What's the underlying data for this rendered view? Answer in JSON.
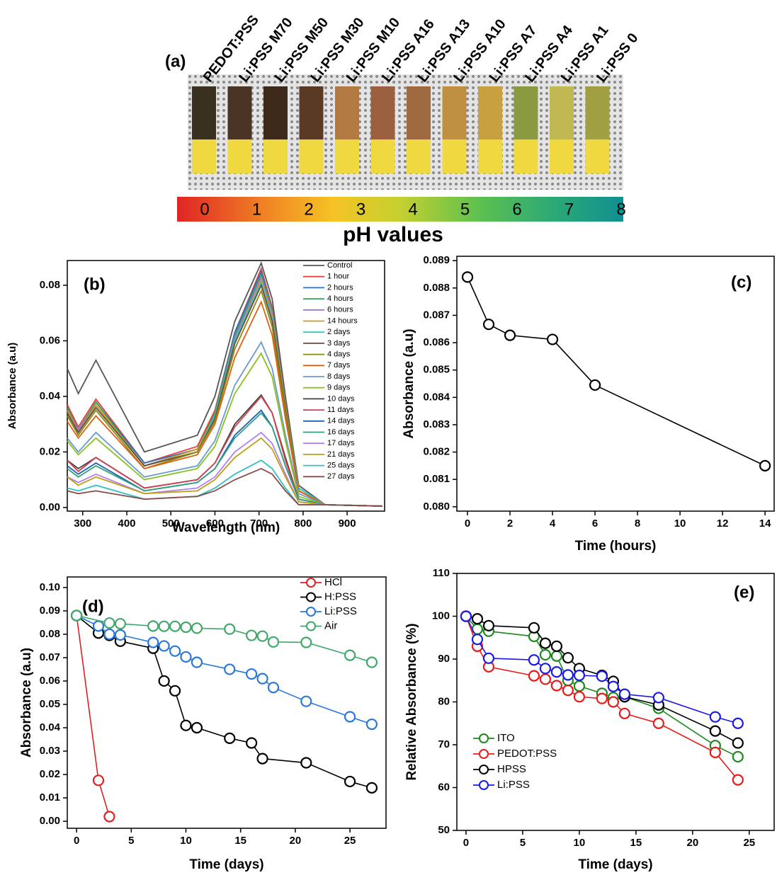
{
  "panel_a": {
    "label": "(a)",
    "strip_labels": [
      "PEDOT:PSS",
      "Li:PSS M70",
      "Li:PSS M50",
      "Li:PSS M30",
      "Li:PSS M10",
      "Li:PSS A16",
      "Li:PSS A13",
      "Li:PSS A10",
      "Li:PSS A7",
      "Li:PSS A4",
      "Li:PSS A1",
      "Li:PSS 0"
    ],
    "ph_scale": [
      0,
      1,
      2,
      3,
      4,
      5,
      6,
      7,
      8
    ],
    "scale_title": "pH values"
  },
  "chart_data": [
    {
      "type": "line",
      "panel_label": "(b)",
      "xlabel": "Wavelength (nm)",
      "ylabel": "Absorbance (a.u)",
      "xlim": [
        265,
        985
      ],
      "ylim": [
        -0.0013,
        0.0889
      ],
      "xticks": [
        300,
        400,
        500,
        600,
        700,
        800,
        900
      ],
      "yticks": [
        {
          "value": 0,
          "label": "0.00"
        },
        0.02,
        0.04,
        0.06,
        0.08
      ],
      "legend": "upper right",
      "marker": "none",
      "x": [
        265,
        290,
        330,
        440,
        560,
        600,
        645,
        705,
        730,
        760,
        790,
        850,
        980
      ],
      "series": [
        {
          "name": "Control",
          "color": "#555555",
          "values": [
            0.05,
            0.041,
            0.053,
            0.02,
            0.026,
            0.04,
            0.067,
            0.088,
            0.075,
            0.04,
            0.008,
            0.001,
            0.0005
          ]
        },
        {
          "name": "1 hour",
          "color": "#e8403a",
          "values": [
            0.037,
            0.029,
            0.039,
            0.016,
            0.022,
            0.035,
            0.063,
            0.086,
            0.072,
            0.038,
            0.007,
            0.001,
            0.0005
          ]
        },
        {
          "name": "2 hours",
          "color": "#2a6fc9",
          "values": [
            0.036,
            0.028,
            0.038,
            0.016,
            0.021,
            0.034,
            0.063,
            0.085,
            0.071,
            0.037,
            0.007,
            0.001,
            0.0005
          ]
        },
        {
          "name": "4 hours",
          "color": "#3aa05a",
          "values": [
            0.036,
            0.028,
            0.038,
            0.015,
            0.021,
            0.034,
            0.062,
            0.084,
            0.071,
            0.037,
            0.007,
            0.001,
            0.0005
          ]
        },
        {
          "name": "6 hours",
          "color": "#a070e0",
          "values": [
            0.035,
            0.028,
            0.037,
            0.015,
            0.021,
            0.033,
            0.061,
            0.083,
            0.07,
            0.036,
            0.007,
            0.001,
            0.0005
          ]
        },
        {
          "name": "14 hours",
          "color": "#d49a20",
          "values": [
            0.035,
            0.027,
            0.037,
            0.015,
            0.021,
            0.033,
            0.06,
            0.082,
            0.069,
            0.036,
            0.007,
            0.001,
            0.0005
          ]
        },
        {
          "name": "2 days",
          "color": "#30c8c8",
          "values": [
            0.034,
            0.027,
            0.036,
            0.015,
            0.02,
            0.033,
            0.06,
            0.081,
            0.068,
            0.035,
            0.007,
            0.001,
            0.0005
          ]
        },
        {
          "name": "3 days",
          "color": "#6b4a3a",
          "values": [
            0.034,
            0.027,
            0.036,
            0.015,
            0.02,
            0.032,
            0.059,
            0.08,
            0.067,
            0.035,
            0.006,
            0.001,
            0.0005
          ]
        },
        {
          "name": "4 days",
          "color": "#8a8a10",
          "values": [
            0.033,
            0.026,
            0.035,
            0.014,
            0.02,
            0.031,
            0.057,
            0.078,
            0.065,
            0.034,
            0.006,
            0.001,
            0.0005
          ]
        },
        {
          "name": "7 days",
          "color": "#e06010",
          "values": [
            0.031,
            0.025,
            0.033,
            0.014,
            0.019,
            0.03,
            0.054,
            0.074,
            0.062,
            0.032,
            0.006,
            0.001,
            0.0005
          ]
        },
        {
          "name": "8 days",
          "color": "#6a9ad0",
          "values": [
            0.025,
            0.02,
            0.027,
            0.011,
            0.015,
            0.024,
            0.044,
            0.0595,
            0.05,
            0.026,
            0.005,
            0.001,
            0.0005
          ]
        },
        {
          "name": "9 days",
          "color": "#8ac020",
          "values": [
            0.024,
            0.019,
            0.025,
            0.01,
            0.014,
            0.022,
            0.041,
            0.0555,
            0.047,
            0.024,
            0.004,
            0.001,
            0.0005
          ]
        },
        {
          "name": "10 days",
          "color": "#404040",
          "values": [
            0.017,
            0.014,
            0.018,
            0.007,
            0.01,
            0.016,
            0.03,
            0.0405,
            0.034,
            0.018,
            0.003,
            0.001,
            0.0005
          ]
        },
        {
          "name": "11 days",
          "color": "#d04050",
          "values": [
            0.017,
            0.013,
            0.018,
            0.007,
            0.01,
            0.016,
            0.029,
            0.04,
            0.034,
            0.017,
            0.003,
            0.001,
            0.0005
          ]
        },
        {
          "name": "14 days",
          "color": "#2060b0",
          "values": [
            0.015,
            0.012,
            0.016,
            0.006,
            0.009,
            0.014,
            0.026,
            0.035,
            0.029,
            0.015,
            0.003,
            0.001,
            0.0005
          ]
        },
        {
          "name": "16 days",
          "color": "#30a080",
          "values": [
            0.014,
            0.011,
            0.015,
            0.006,
            0.009,
            0.014,
            0.025,
            0.034,
            0.029,
            0.015,
            0.003,
            0.001,
            0.0005
          ]
        },
        {
          "name": "17 days",
          "color": "#b080f0",
          "values": [
            0.011,
            0.009,
            0.012,
            0.005,
            0.007,
            0.011,
            0.02,
            0.027,
            0.023,
            0.012,
            0.002,
            0.001,
            0.0005
          ]
        },
        {
          "name": "21 days",
          "color": "#c0a010",
          "values": [
            0.011,
            0.008,
            0.011,
            0.005,
            0.006,
            0.01,
            0.018,
            0.025,
            0.021,
            0.011,
            0.002,
            0.001,
            0.0005
          ]
        },
        {
          "name": "25 days",
          "color": "#30c0c0",
          "values": [
            0.007,
            0.006,
            0.008,
            0.003,
            0.004,
            0.007,
            0.012,
            0.017,
            0.014,
            0.007,
            0.001,
            0.001,
            0.0005
          ]
        },
        {
          "name": "27 days",
          "color": "#8a4a4a",
          "values": [
            0.006,
            0.005,
            0.006,
            0.003,
            0.004,
            0.006,
            0.01,
            0.014,
            0.012,
            0.006,
            0.001,
            0.001,
            0.0005
          ]
        }
      ]
    },
    {
      "type": "line",
      "panel_label": "(c)",
      "xlabel": "Time (hours)",
      "ylabel": "Absorbance (a.u)",
      "xlim": [
        -0.5,
        14.43
      ],
      "ylim": [
        0.07984,
        0.08916
      ],
      "xticks": [
        0,
        2,
        4,
        6,
        8,
        10,
        12,
        14
      ],
      "yticks": [
        {
          "value": 0.08,
          "label": "0.080"
        },
        0.081,
        0.082,
        0.083,
        0.084,
        0.085,
        0.086,
        0.087,
        0.088,
        0.089
      ],
      "marker": "circle",
      "x": [
        0,
        1,
        2,
        4,
        6,
        14
      ],
      "series": [
        {
          "color": "#000000",
          "values": [
            0.0884,
            0.08667,
            0.08627,
            0.08612,
            0.08445,
            0.0815
          ]
        }
      ]
    },
    {
      "type": "line",
      "panel_label": "(d)",
      "xlabel": "Time (days)",
      "ylabel": "Absorbance (a.u)",
      "xlim": [
        -0.85,
        28.3
      ],
      "ylim": [
        -0.003,
        0.1045
      ],
      "xticks": [
        0,
        5,
        10,
        15,
        20,
        25
      ],
      "yticks": [
        {
          "value": 0,
          "label": "0.00"
        },
        0.01,
        0.02,
        0.03,
        0.04,
        0.05,
        0.06,
        0.07,
        0.08,
        0.09,
        {
          "value": 0.1,
          "label": "0.10"
        }
      ],
      "legend": "upper right",
      "marker": "circle",
      "series": [
        {
          "name": "HCl",
          "color": "#e02020",
          "x": [
            0,
            2,
            3
          ],
          "values": [
            0.088,
            0.0175,
            0.002
          ]
        },
        {
          "name": "H:PSS",
          "color": "#000000",
          "x": [
            0,
            2,
            3,
            4,
            7,
            8,
            9,
            10,
            11,
            14,
            16,
            17,
            21,
            25,
            27
          ],
          "values": [
            0.088,
            0.0805,
            0.0795,
            0.077,
            0.074,
            0.06,
            0.0558,
            0.041,
            0.04,
            0.0355,
            0.0335,
            0.0268,
            0.025,
            0.017,
            0.0143
          ]
        },
        {
          "name": "Li:PSS",
          "color": "#2878d8",
          "x": [
            0,
            2,
            3,
            4,
            7,
            8,
            9,
            10,
            11,
            14,
            16,
            17,
            18,
            21,
            25,
            27
          ],
          "values": [
            0.088,
            0.0835,
            0.08,
            0.0797,
            0.0765,
            0.075,
            0.0728,
            0.0703,
            0.068,
            0.065,
            0.063,
            0.061,
            0.0572,
            0.0513,
            0.0447,
            0.0415
          ]
        },
        {
          "name": "Air",
          "color": "#40a868",
          "x": [
            0,
            3,
            4,
            7,
            8,
            9,
            10,
            11,
            14,
            16,
            17,
            18,
            21,
            25,
            27
          ],
          "values": [
            0.088,
            0.0848,
            0.0845,
            0.0835,
            0.0834,
            0.0834,
            0.083,
            0.0826,
            0.0822,
            0.0795,
            0.0792,
            0.0767,
            0.0765,
            0.071,
            0.068
          ]
        }
      ]
    },
    {
      "type": "line",
      "panel_label": "(e)",
      "xlabel": "Time (days)",
      "ylabel": "Relative Absorbance (%)",
      "xlim": [
        -0.81,
        27.2
      ],
      "ylim": [
        50,
        110
      ],
      "xticks": [
        0,
        5,
        10,
        15,
        20,
        25
      ],
      "yticks": [
        50,
        60,
        70,
        80,
        90,
        100,
        110
      ],
      "legend": "lower left",
      "marker": "circle",
      "series": [
        {
          "name": "ITO",
          "color": "#1a8a1a",
          "x": [
            0,
            1,
            2,
            6,
            7,
            8,
            9,
            10,
            12,
            13,
            14,
            17,
            22,
            24
          ],
          "values": [
            100,
            97,
            96.5,
            95.3,
            91,
            90.7,
            85,
            83.7,
            82,
            81,
            81.2,
            78.5,
            69.8,
            67.2
          ]
        },
        {
          "name": "PEDOT:PSS",
          "color": "#e81a1a",
          "x": [
            0,
            1,
            2,
            6,
            7,
            8,
            9,
            10,
            12,
            13,
            14,
            17,
            22,
            24
          ],
          "values": [
            100,
            93,
            88.2,
            86.1,
            85.3,
            83.8,
            82.7,
            81.2,
            80.8,
            80,
            77.3,
            75,
            68.2,
            61.8
          ]
        },
        {
          "name": "HPSS",
          "color": "#000000",
          "x": [
            0,
            1,
            2,
            6,
            7,
            8,
            9,
            10,
            12,
            13,
            14,
            17,
            22,
            24
          ],
          "values": [
            100,
            99.4,
            97.8,
            97.3,
            93.7,
            93,
            90.3,
            87.8,
            86.2,
            84.8,
            81.2,
            79.3,
            73.2,
            70.4
          ]
        },
        {
          "name": "Li:PSS",
          "color": "#1a1ae8",
          "x": [
            0,
            1,
            2,
            6,
            7,
            8,
            9,
            10,
            12,
            13,
            14,
            17,
            22,
            24
          ],
          "values": [
            100,
            94.6,
            90.2,
            89.8,
            87.8,
            87,
            86.3,
            86.2,
            86,
            83.6,
            81.8,
            81,
            76.5,
            75
          ]
        }
      ]
    }
  ]
}
